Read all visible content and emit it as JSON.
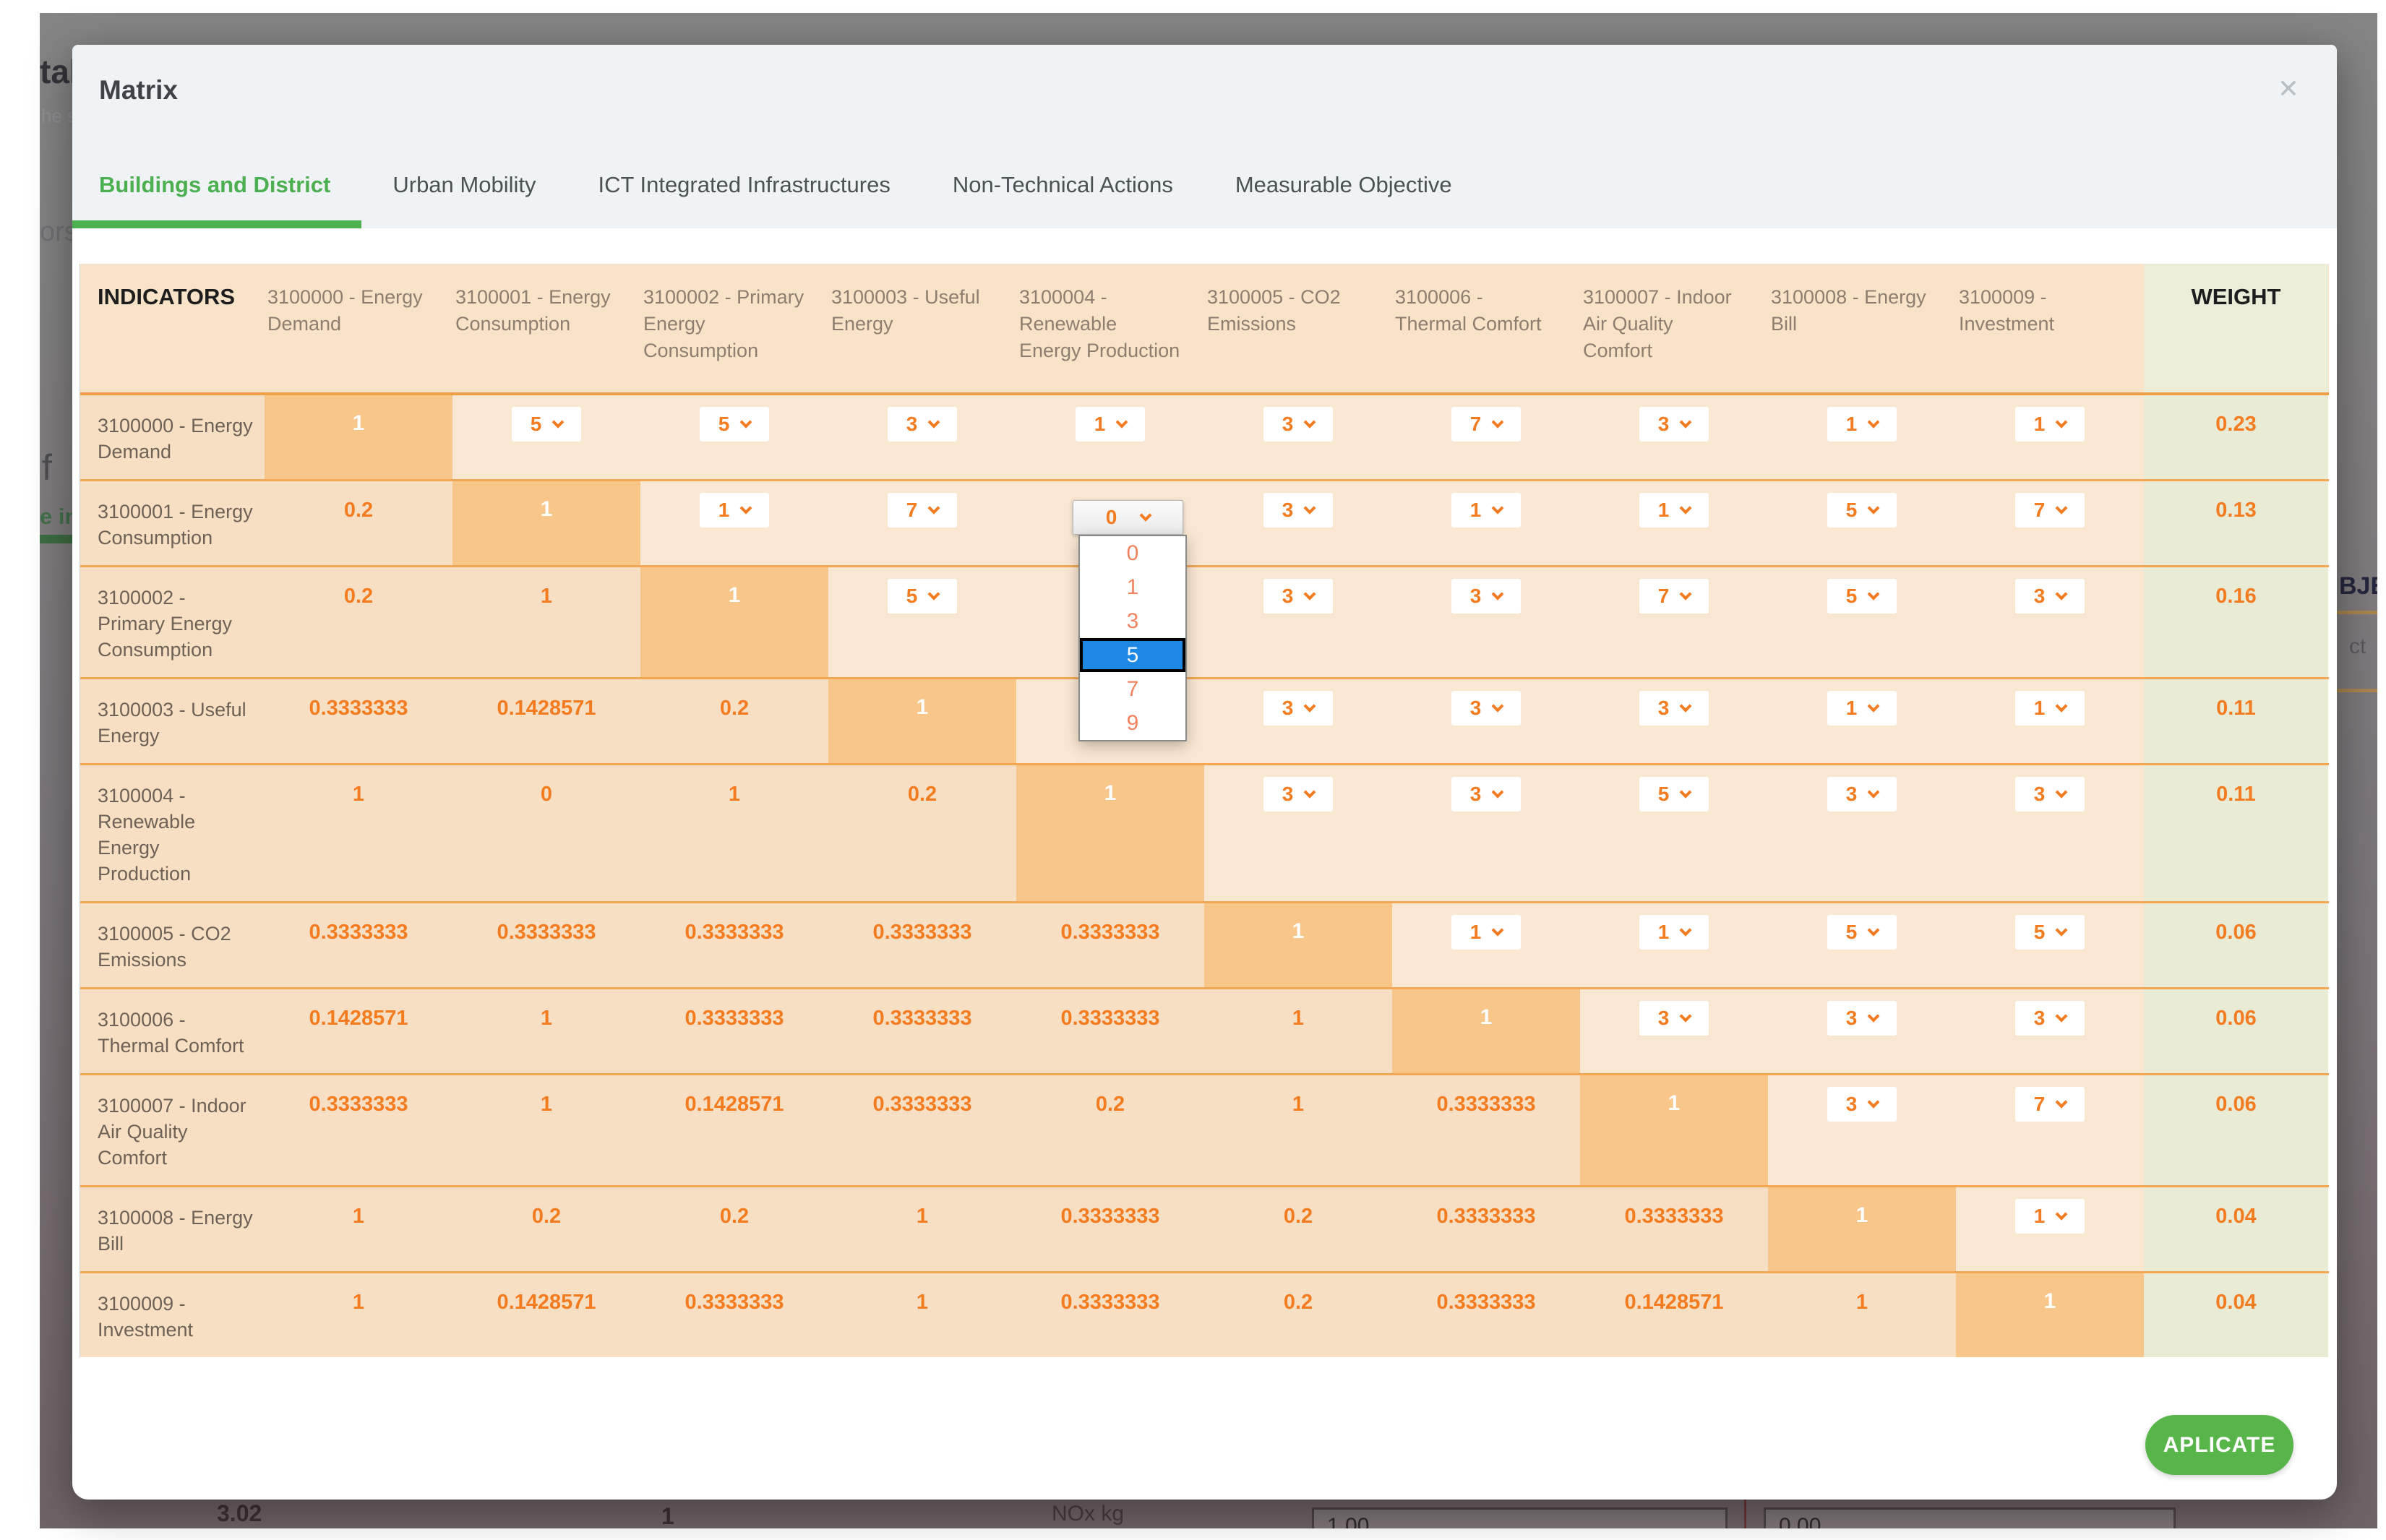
{
  "modal": {
    "title": "Matrix",
    "close_icon": "✕",
    "apply_button_label": "APLICATE"
  },
  "tabs": [
    {
      "label": "Buildings and District",
      "active": true
    },
    {
      "label": "Urban Mobility",
      "active": false
    },
    {
      "label": "ICT Integrated Infrastructures",
      "active": false
    },
    {
      "label": "Non-Technical Actions",
      "active": false
    },
    {
      "label": "Measurable Objective",
      "active": false
    }
  ],
  "matrix": {
    "corner_header": "INDICATORS",
    "weight_header": "WEIGHT",
    "columns": [
      "3100000 - Energy Demand",
      "3100001 - Energy Consumption",
      "3100002 - Primary Energy Consumption",
      "3100003 - Useful Energy",
      "3100004 - Renewable Energy Production",
      "3100005 - CO2 Emissions",
      "3100006 - Thermal Comfort",
      "3100007 - Indoor Air Quality Comfort",
      "3100008 - Energy Bill",
      "3100009 - Investment"
    ],
    "rows": [
      {
        "label": "3100000 - Energy Demand",
        "weight": "0.23",
        "cells": [
          {
            "type": "diag",
            "value": "1"
          },
          {
            "type": "select",
            "value": "5"
          },
          {
            "type": "select",
            "value": "5"
          },
          {
            "type": "select",
            "value": "3"
          },
          {
            "type": "select",
            "value": "1"
          },
          {
            "type": "select",
            "value": "3"
          },
          {
            "type": "select",
            "value": "7"
          },
          {
            "type": "select",
            "value": "3"
          },
          {
            "type": "select",
            "value": "1"
          },
          {
            "type": "select",
            "value": "1"
          }
        ]
      },
      {
        "label": "3100001 - Energy Consumption",
        "weight": "0.13",
        "cells": [
          {
            "type": "num",
            "value": "0.2"
          },
          {
            "type": "diag",
            "value": "1"
          },
          {
            "type": "select",
            "value": "1"
          },
          {
            "type": "select",
            "value": "7"
          },
          {
            "type": "open",
            "value": "0"
          },
          {
            "type": "select",
            "value": "3"
          },
          {
            "type": "select",
            "value": "1"
          },
          {
            "type": "select",
            "value": "1"
          },
          {
            "type": "select",
            "value": "5"
          },
          {
            "type": "select",
            "value": "7"
          }
        ]
      },
      {
        "label": "3100002 - Primary Energy Consumption",
        "weight": "0.16",
        "cells": [
          {
            "type": "num",
            "value": "0.2"
          },
          {
            "type": "num",
            "value": "1"
          },
          {
            "type": "diag",
            "value": "1"
          },
          {
            "type": "select",
            "value": "5"
          },
          null,
          {
            "type": "select",
            "value": "3"
          },
          {
            "type": "select",
            "value": "3"
          },
          {
            "type": "select",
            "value": "7"
          },
          {
            "type": "select",
            "value": "5"
          },
          {
            "type": "select",
            "value": "3"
          }
        ]
      },
      {
        "label": "3100003 - Useful Energy",
        "weight": "0.11",
        "cells": [
          {
            "type": "num",
            "value": "0.3333333"
          },
          {
            "type": "num",
            "value": "0.1428571"
          },
          {
            "type": "num",
            "value": "0.2"
          },
          {
            "type": "diag",
            "value": "1"
          },
          null,
          {
            "type": "select",
            "value": "3"
          },
          {
            "type": "select",
            "value": "3"
          },
          {
            "type": "select",
            "value": "3"
          },
          {
            "type": "select",
            "value": "1"
          },
          {
            "type": "select",
            "value": "1"
          }
        ]
      },
      {
        "label": "3100004 - Renewable Energy Production",
        "weight": "0.11",
        "cells": [
          {
            "type": "num",
            "value": "1"
          },
          {
            "type": "num",
            "value": "0"
          },
          {
            "type": "num",
            "value": "1"
          },
          {
            "type": "num",
            "value": "0.2"
          },
          {
            "type": "diag",
            "value": "1"
          },
          {
            "type": "select",
            "value": "3"
          },
          {
            "type": "select",
            "value": "3"
          },
          {
            "type": "select",
            "value": "5"
          },
          {
            "type": "select",
            "value": "3"
          },
          {
            "type": "select",
            "value": "3"
          }
        ]
      },
      {
        "label": "3100005 - CO2 Emissions",
        "weight": "0.06",
        "cells": [
          {
            "type": "num",
            "value": "0.3333333"
          },
          {
            "type": "num",
            "value": "0.3333333"
          },
          {
            "type": "num",
            "value": "0.3333333"
          },
          {
            "type": "num",
            "value": "0.3333333"
          },
          {
            "type": "num",
            "value": "0.3333333"
          },
          {
            "type": "diag",
            "value": "1"
          },
          {
            "type": "select",
            "value": "1"
          },
          {
            "type": "select",
            "value": "1"
          },
          {
            "type": "select",
            "value": "5"
          },
          {
            "type": "select",
            "value": "5"
          }
        ]
      },
      {
        "label": "3100006 - Thermal Comfort",
        "weight": "0.06",
        "cells": [
          {
            "type": "num",
            "value": "0.1428571"
          },
          {
            "type": "num",
            "value": "1"
          },
          {
            "type": "num",
            "value": "0.3333333"
          },
          {
            "type": "num",
            "value": "0.3333333"
          },
          {
            "type": "num",
            "value": "0.3333333"
          },
          {
            "type": "num",
            "value": "1"
          },
          {
            "type": "diag",
            "value": "1"
          },
          {
            "type": "select",
            "value": "3"
          },
          {
            "type": "select",
            "value": "3"
          },
          {
            "type": "select",
            "value": "3"
          }
        ]
      },
      {
        "label": "3100007 - Indoor Air Quality Comfort",
        "weight": "0.06",
        "cells": [
          {
            "type": "num",
            "value": "0.3333333"
          },
          {
            "type": "num",
            "value": "1"
          },
          {
            "type": "num",
            "value": "0.1428571"
          },
          {
            "type": "num",
            "value": "0.3333333"
          },
          {
            "type": "num",
            "value": "0.2"
          },
          {
            "type": "num",
            "value": "1"
          },
          {
            "type": "num",
            "value": "0.3333333"
          },
          {
            "type": "diag",
            "value": "1"
          },
          {
            "type": "select",
            "value": "3"
          },
          {
            "type": "select",
            "value": "7"
          }
        ]
      },
      {
        "label": "3100008 - Energy Bill",
        "weight": "0.04",
        "cells": [
          {
            "type": "num",
            "value": "1"
          },
          {
            "type": "num",
            "value": "0.2"
          },
          {
            "type": "num",
            "value": "0.2"
          },
          {
            "type": "num",
            "value": "1"
          },
          {
            "type": "num",
            "value": "0.3333333"
          },
          {
            "type": "num",
            "value": "0.2"
          },
          {
            "type": "num",
            "value": "0.3333333"
          },
          {
            "type": "num",
            "value": "0.3333333"
          },
          {
            "type": "diag",
            "value": "1"
          },
          {
            "type": "select",
            "value": "1"
          }
        ]
      },
      {
        "label": "3100009 - Investment",
        "weight": "0.04",
        "cells": [
          {
            "type": "num",
            "value": "1"
          },
          {
            "type": "num",
            "value": "0.1428571"
          },
          {
            "type": "num",
            "value": "0.3333333"
          },
          {
            "type": "num",
            "value": "1"
          },
          {
            "type": "num",
            "value": "0.3333333"
          },
          {
            "type": "num",
            "value": "0.2"
          },
          {
            "type": "num",
            "value": "0.3333333"
          },
          {
            "type": "num",
            "value": "0.1428571"
          },
          {
            "type": "num",
            "value": "1"
          },
          {
            "type": "diag",
            "value": "1"
          }
        ]
      }
    ]
  },
  "open_dropdown": {
    "value": "0",
    "options": [
      "0",
      "1",
      "3",
      "5",
      "7",
      "9"
    ],
    "highlighted": "5"
  },
  "background_fragments": {
    "title_left": "tal",
    "subtitle_left": "he sm",
    "ors": "ors",
    "f": "f",
    "e_ind": "e ind",
    "bje": "BJE",
    "ct": "ct",
    "val_302": "3.02",
    "val_1": "1",
    "nox_kg": "NOx kg",
    "box_1": "1.00",
    "box_2": "0.00"
  },
  "colors": {
    "accent_green": "#4caf50",
    "button_green": "#58b54a",
    "orange_text": "#f47c20",
    "diagonal_fill": "#f8c689",
    "row_separator": "#f3a753",
    "weight_fill": "#e9ebd5",
    "highlight_blue": "#1e88e5"
  }
}
